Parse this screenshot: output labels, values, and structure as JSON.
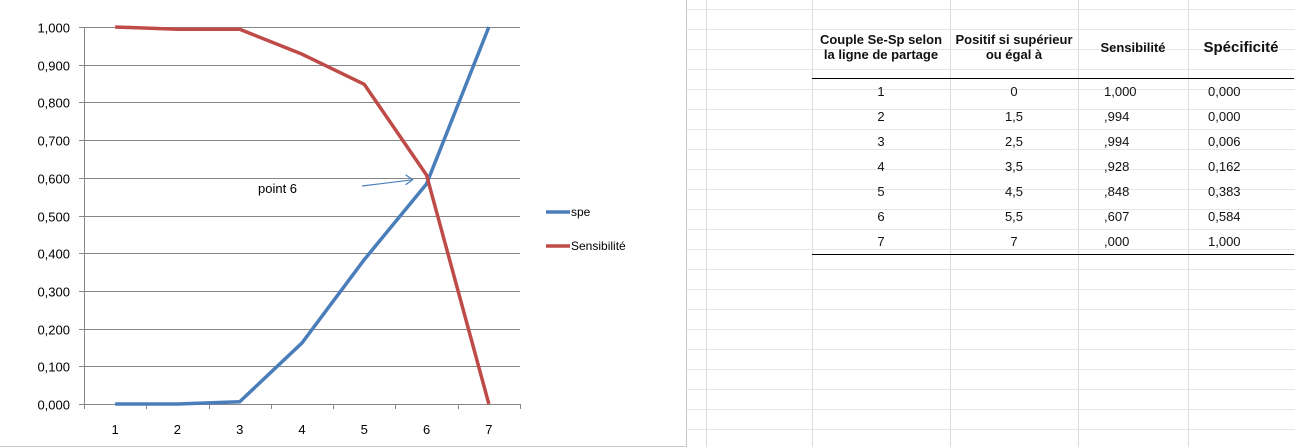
{
  "chart_data": {
    "type": "line",
    "categories": [
      "1",
      "2",
      "3",
      "4",
      "5",
      "6",
      "7"
    ],
    "series": [
      {
        "name": "spe",
        "values": [
          0,
          0,
          0.006,
          0.162,
          0.383,
          0.584,
          1.0
        ],
        "color": "#4a7ebb"
      },
      {
        "name": "Sensibilité",
        "values": [
          1.0,
          0.994,
          0.994,
          0.928,
          0.848,
          0.607,
          0.0
        ],
        "color": "#be4b48"
      }
    ],
    "y_ticks": [
      "0,000",
      "0,100",
      "0,200",
      "0,300",
      "0,400",
      "0,500",
      "0,600",
      "0,700",
      "0,800",
      "0,900",
      "1,000"
    ],
    "ylim": [
      0,
      1
    ],
    "grid": true,
    "legend_position": "right",
    "annotations": [
      {
        "text": "point 6",
        "target_category": "6",
        "target_value": 0.6,
        "arrow": true
      }
    ],
    "title": "",
    "xlabel": "",
    "ylabel": ""
  },
  "table": {
    "headers": [
      "Couple Se-Sp selon la ligne de partage",
      "Positif si supérieur ou égal à",
      "Sensibilité",
      "Spécificité"
    ],
    "rows": [
      [
        "1",
        "0",
        "1,000",
        "0,000"
      ],
      [
        "2",
        "1,5",
        ",994",
        "0,000"
      ],
      [
        "3",
        "2,5",
        ",994",
        "0,006"
      ],
      [
        "4",
        "3,5",
        ",928",
        "0,162"
      ],
      [
        "5",
        "4,5",
        ",848",
        "0,383"
      ],
      [
        "6",
        "5,5",
        ",607",
        "0,584"
      ],
      [
        "7",
        "7",
        ",000",
        "1,000"
      ]
    ]
  }
}
